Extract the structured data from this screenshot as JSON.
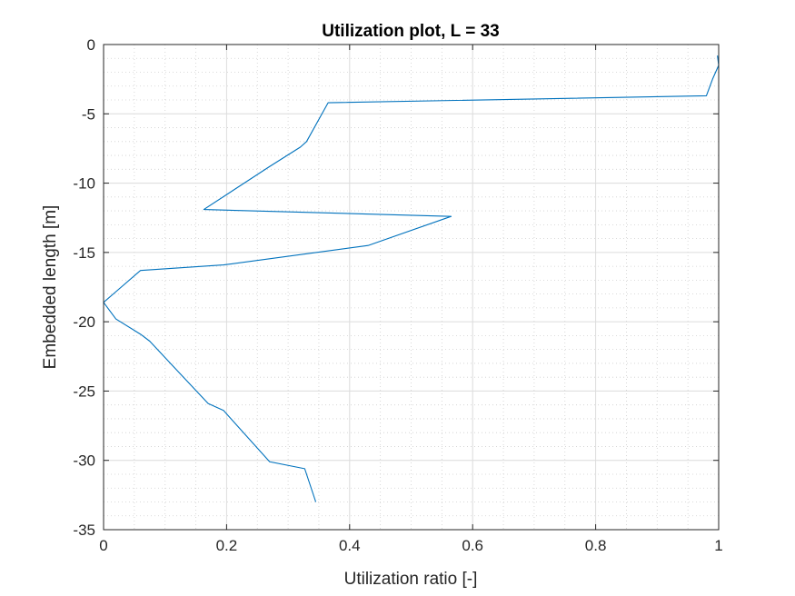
{
  "chart_data": {
    "type": "line",
    "title": "Utilization plot, L = 33",
    "xlabel": "Utilization ratio [-]",
    "ylabel": "Embedded length [m]",
    "xlim": [
      0,
      1
    ],
    "ylim": [
      -35,
      0
    ],
    "xticks": [
      0,
      0.2,
      0.4,
      0.6,
      0.8,
      1
    ],
    "xtick_labels": [
      "0",
      "0.2",
      "0.4",
      "0.6",
      "0.8",
      "1"
    ],
    "yticks": [
      0,
      -5,
      -10,
      -15,
      -20,
      -25,
      -30,
      -35
    ],
    "ytick_labels": [
      "0",
      "-5",
      "-10",
      "-15",
      "-20",
      "-25",
      "-30",
      "-35"
    ],
    "grid": true,
    "minor_grid": true,
    "series": [
      {
        "color": "#0072BD",
        "x": [
          0.998,
          1.0,
          0.99,
          0.98,
          0.365,
          0.33,
          0.32,
          0.27,
          0.163,
          0.565,
          0.43,
          0.195,
          0.06,
          0.0,
          0.02,
          0.06,
          0.075,
          0.115,
          0.17,
          0.195,
          0.27,
          0.327,
          0.345
        ],
        "y": [
          -0.8,
          -1.5,
          -2.5,
          -3.7,
          -4.2,
          -7.0,
          -7.4,
          -8.8,
          -11.9,
          -12.4,
          -14.5,
          -15.9,
          -16.3,
          -18.6,
          -19.8,
          -20.9,
          -21.4,
          -23.3,
          -25.9,
          -26.4,
          -30.1,
          -30.6,
          -33.0
        ]
      }
    ]
  }
}
